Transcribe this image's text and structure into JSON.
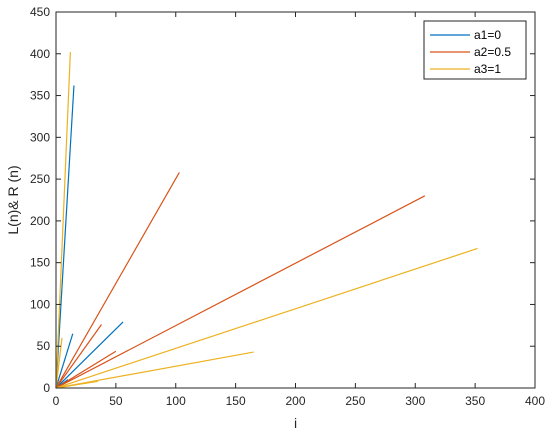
{
  "chart_data": {
    "type": "line",
    "title": "",
    "xlabel": "i",
    "ylabel": "L(n)& R (n)",
    "xlim": [
      0,
      400
    ],
    "ylim": [
      0,
      450
    ],
    "x_ticks": [
      "0",
      "50",
      "100",
      "150",
      "200",
      "250",
      "300",
      "350",
      "400"
    ],
    "y_ticks": [
      "0",
      "50",
      "100",
      "150",
      "200",
      "250",
      "300",
      "350",
      "400",
      "450"
    ],
    "grid": false,
    "legend_position": "top-right",
    "series": [
      {
        "name": "a1=0",
        "color": "#0072BD",
        "segments": [
          [
            [
              0,
              0
            ],
            [
              15,
              362
            ]
          ],
          [
            [
              0,
              0
            ],
            [
              14,
              65
            ]
          ],
          [
            [
              0,
              0
            ],
            [
              56,
              79
            ]
          ],
          [
            [
              0,
              0
            ],
            [
              10,
              10
            ]
          ]
        ]
      },
      {
        "name": "a2=0.5",
        "color": "#D95319",
        "segments": [
          [
            [
              0,
              0
            ],
            [
              103,
              258
            ]
          ],
          [
            [
              0,
              0
            ],
            [
              308,
              230
            ]
          ],
          [
            [
              0,
              0
            ],
            [
              38,
              76
            ]
          ],
          [
            [
              0,
              0
            ],
            [
              50,
              44
            ]
          ]
        ]
      },
      {
        "name": "a3=1",
        "color": "#EDB120",
        "segments": [
          [
            [
              0,
              0
            ],
            [
              12,
              402
            ]
          ],
          [
            [
              0,
              0
            ],
            [
              352,
              167
            ]
          ],
          [
            [
              0,
              0
            ],
            [
              165,
              43
            ]
          ],
          [
            [
              0,
              0
            ],
            [
              35,
              8
            ]
          ],
          [
            [
              0,
              0
            ],
            [
              5,
              60
            ]
          ]
        ]
      }
    ]
  }
}
